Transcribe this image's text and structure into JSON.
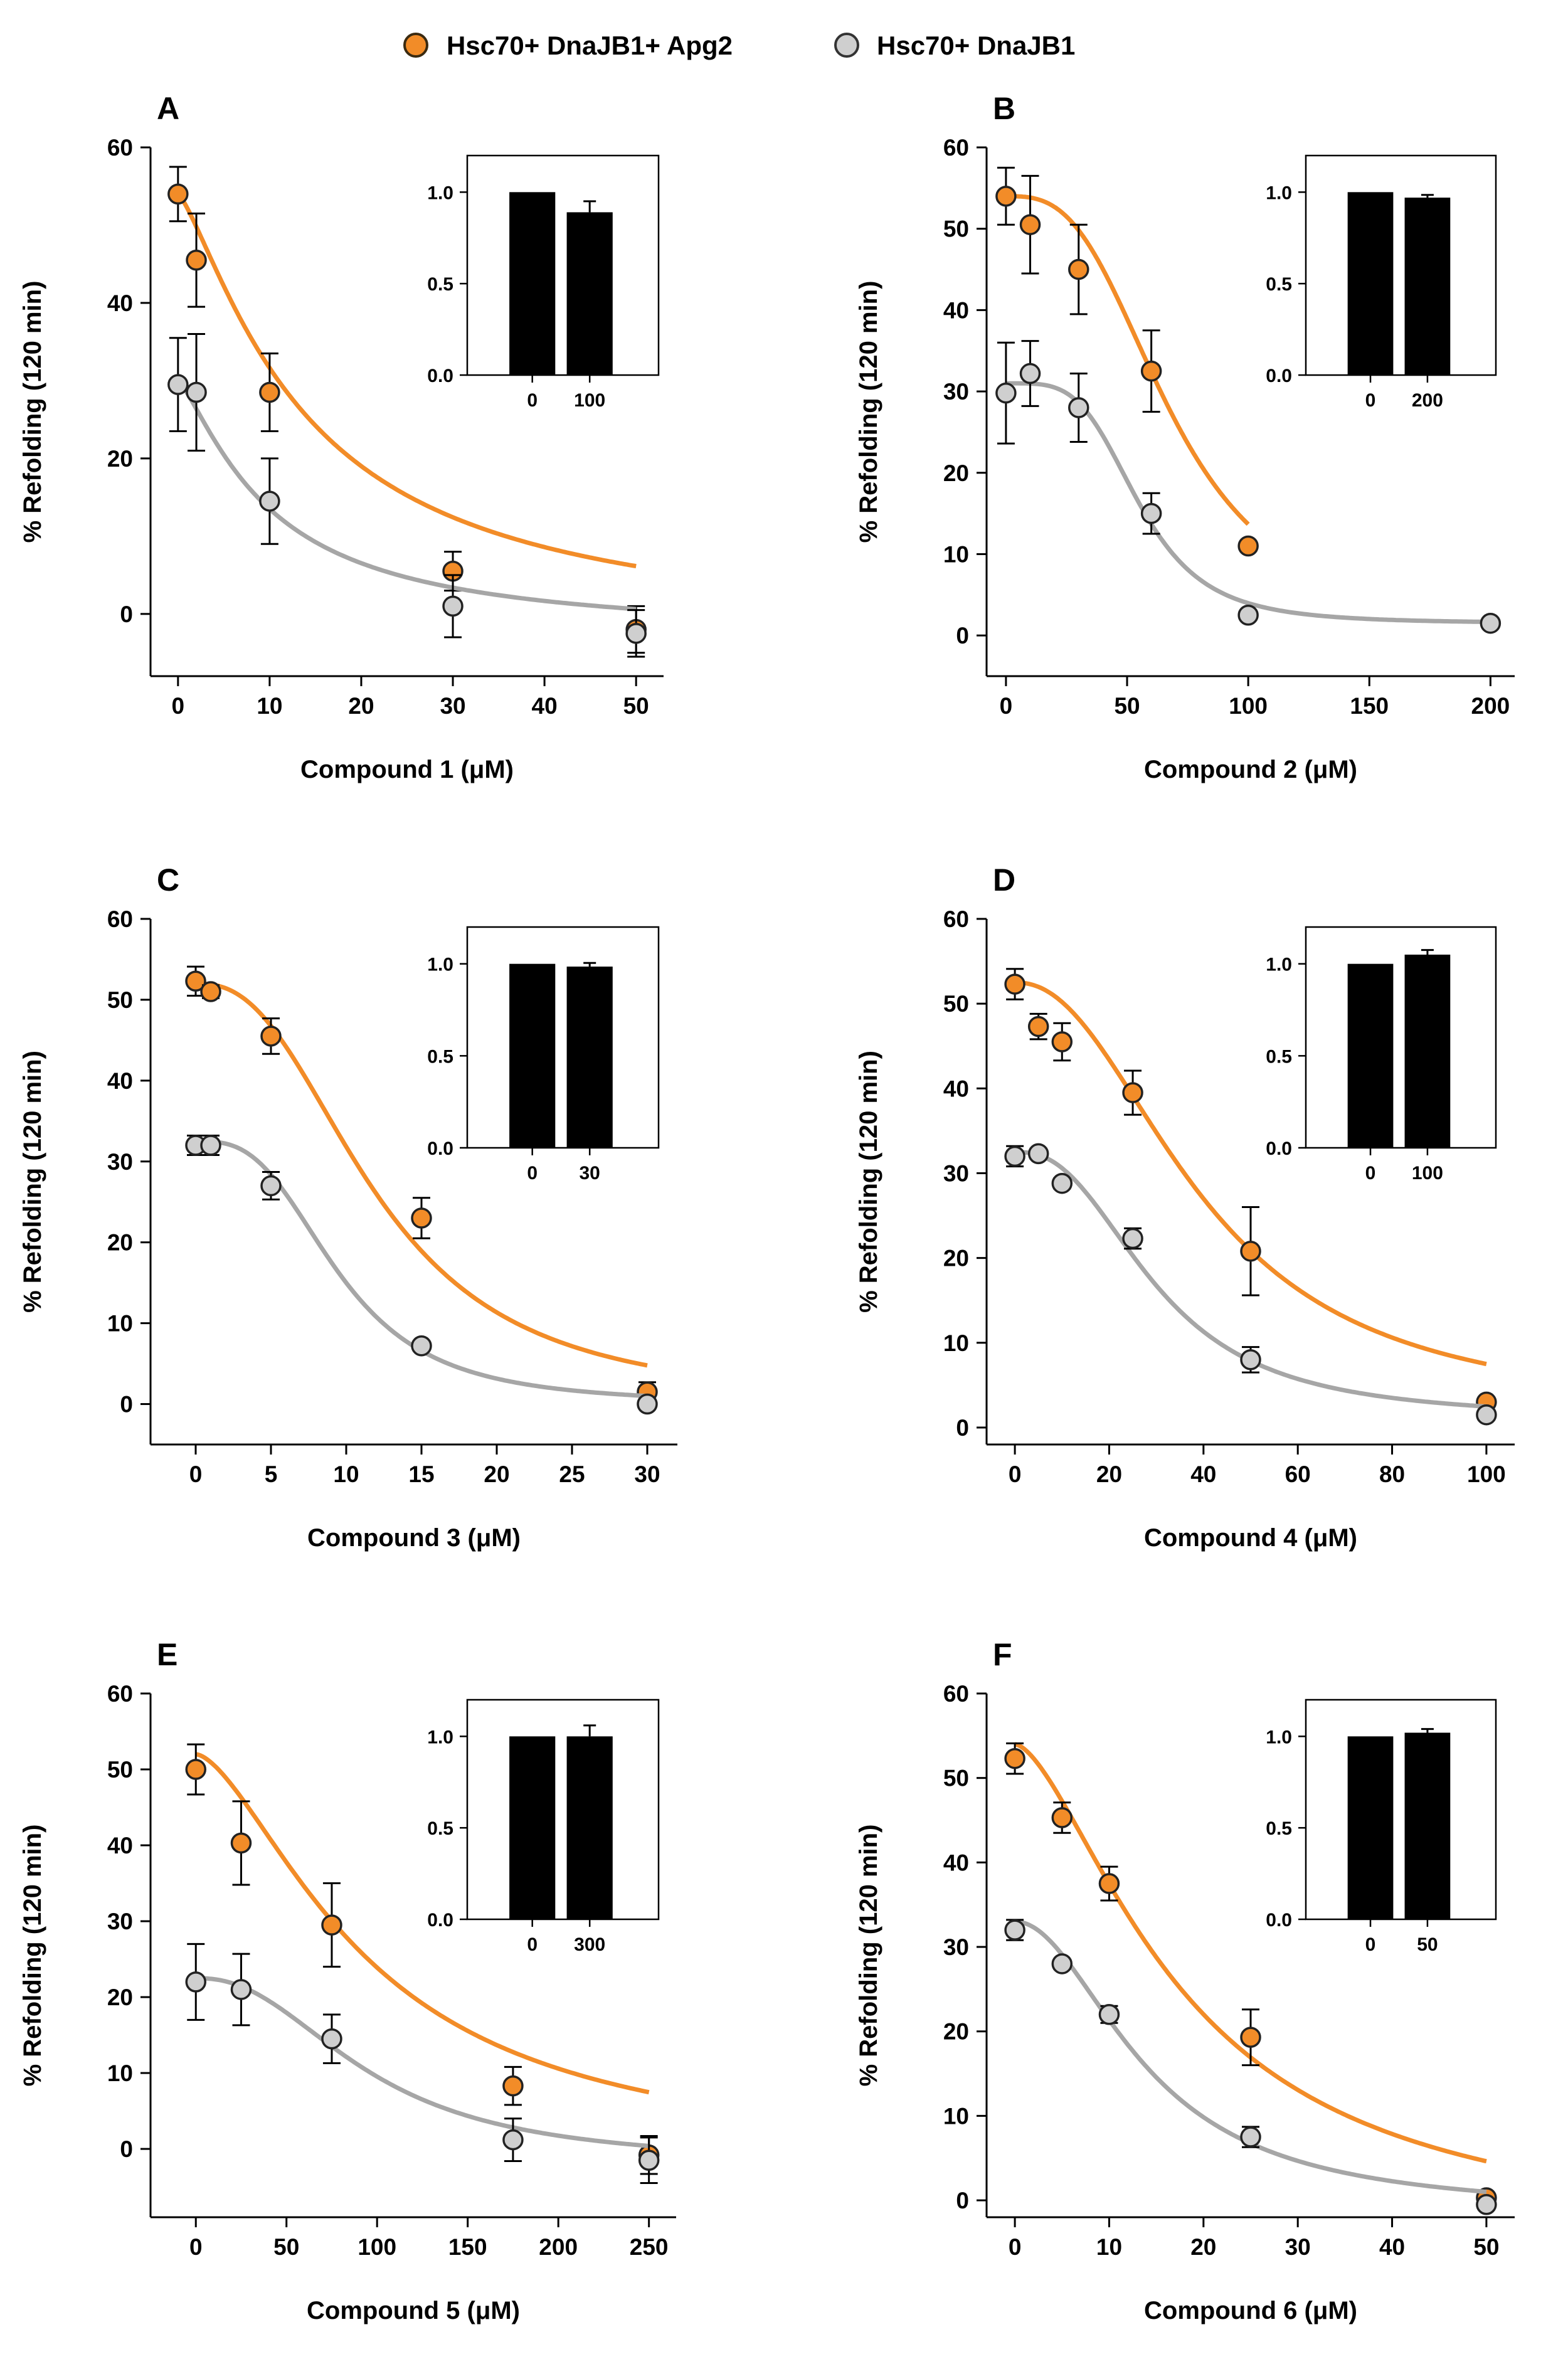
{
  "legend": {
    "items": [
      {
        "label": "Hsc70+ DnaJB1+ Apg2",
        "color": "#f28c28"
      },
      {
        "label": "Hsc70+ DnaJB1",
        "color": "#c8c8c8"
      }
    ]
  },
  "colors": {
    "orange_fill": "#f28c28",
    "orange_line": "#f28c28",
    "gray_fill": "#cfcfcf",
    "gray_line": "#a6a6a6",
    "axis": "#000000",
    "bar": "#000000"
  },
  "chart_data": [
    {
      "type": "scatter",
      "panel": "A",
      "xlabel": "Compound 1 (μM)",
      "ylabel": "% Refolding (120 min)",
      "xlim": [
        -3,
        53
      ],
      "ylim": [
        -8,
        60
      ],
      "xticks": [
        0,
        10,
        20,
        30,
        40,
        50
      ],
      "yticks": [
        0,
        20,
        40,
        60
      ],
      "series": [
        {
          "name": "Hsc70+ DnaJB1+ Apg2",
          "x": [
            0,
            2,
            10,
            30,
            50
          ],
          "y": [
            54,
            45.5,
            28.5,
            5.5,
            -2
          ],
          "err": [
            3.5,
            6,
            5,
            2.5,
            3
          ],
          "fit": {
            "top": 54,
            "bottom": -3,
            "ic50": 14,
            "hill": 1.3
          }
        },
        {
          "name": "Hsc70+ DnaJB1",
          "x": [
            0,
            2,
            10,
            30,
            50
          ],
          "y": [
            29.5,
            28.5,
            14.5,
            1,
            -2.5
          ],
          "err": [
            6,
            7.5,
            5.5,
            4,
            3
          ],
          "fit": {
            "top": 30,
            "bottom": -3,
            "ic50": 10,
            "hill": 1.3
          }
        }
      ],
      "inset": {
        "categories": [
          "0",
          "100"
        ],
        "values": [
          1.0,
          0.89
        ],
        "err": [
          0,
          0.06
        ],
        "yticks": [
          "0.0",
          "0.5",
          "1.0"
        ]
      }
    },
    {
      "type": "scatter",
      "panel": "B",
      "xlabel": "Compound 2 (μM)",
      "ylabel": "% Refolding (120 min)",
      "xlim": [
        -8,
        210
      ],
      "ylim": [
        -5,
        60
      ],
      "xticks": [
        0,
        50,
        100,
        150,
        200
      ],
      "yticks": [
        0,
        10,
        20,
        30,
        40,
        50,
        60
      ],
      "series": [
        {
          "name": "Hsc70+ DnaJB1+ Apg2",
          "x": [
            0,
            10,
            30,
            60,
            100
          ],
          "y": [
            54,
            50.5,
            45,
            32.5,
            11
          ],
          "err": [
            3.5,
            6,
            5.5,
            5,
            0.6
          ],
          "fit": {
            "top": 54,
            "bottom": 1,
            "ic50": 68,
            "hill": 3
          }
        },
        {
          "name": "Hsc70+ DnaJB1",
          "x": [
            0,
            10,
            30,
            60,
            100,
            200
          ],
          "y": [
            29.8,
            32.2,
            28,
            15,
            2.5,
            1.5
          ],
          "err": [
            6.2,
            4,
            4.2,
            2.5,
            0.6,
            0.5
          ],
          "fit": {
            "top": 31,
            "bottom": 1.5,
            "ic50": 55,
            "hill": 4
          }
        }
      ],
      "inset": {
        "categories": [
          "0",
          "200"
        ],
        "values": [
          1.0,
          0.97
        ],
        "err": [
          0,
          0.015
        ],
        "yticks": [
          "0.0",
          "0.5",
          "1.0"
        ]
      }
    },
    {
      "type": "scatter",
      "panel": "C",
      "xlabel": "Compound 3 (μM)",
      "ylabel": "% Refolding (120 min)",
      "xlim": [
        -3,
        32
      ],
      "ylim": [
        -5,
        60
      ],
      "xticks": [
        0,
        5,
        10,
        15,
        20,
        25,
        30
      ],
      "yticks": [
        0,
        10,
        20,
        30,
        40,
        50,
        60
      ],
      "series": [
        {
          "name": "Hsc70+ DnaJB1+ Apg2",
          "x": [
            0,
            1,
            5,
            15,
            30
          ],
          "y": [
            52.3,
            51,
            45.5,
            23,
            1.5
          ],
          "err": [
            1.8,
            0.8,
            2.2,
            2.5,
            1.2
          ],
          "fit": {
            "top": 52,
            "bottom": 0,
            "ic50": 12,
            "hill": 2.5
          }
        },
        {
          "name": "Hsc70+ DnaJB1",
          "x": [
            0,
            1,
            5,
            15,
            30
          ],
          "y": [
            32,
            32,
            27,
            7.2,
            0
          ],
          "err": [
            1.2,
            1.2,
            1.7,
            0.5,
            0.5
          ],
          "fit": {
            "top": 32.5,
            "bottom": 0,
            "ic50": 9.5,
            "hill": 3
          }
        }
      ],
      "inset": {
        "categories": [
          "0",
          "30"
        ],
        "values": [
          1.0,
          0.985
        ],
        "err": [
          0,
          0.02
        ],
        "yticks": [
          "0.0",
          "0.5",
          "1.0"
        ]
      }
    },
    {
      "type": "scatter",
      "panel": "D",
      "xlabel": "Compound 4 (μM)",
      "ylabel": "% Refolding (120 min)",
      "xlim": [
        -6,
        106
      ],
      "ylim": [
        -2,
        60
      ],
      "xticks": [
        0,
        20,
        40,
        60,
        80,
        100
      ],
      "yticks": [
        0,
        10,
        20,
        30,
        40,
        50,
        60
      ],
      "series": [
        {
          "name": "Hsc70+ DnaJB1+ Apg2",
          "x": [
            0,
            5,
            10,
            25,
            50,
            100
          ],
          "y": [
            52.3,
            47.3,
            45.5,
            39.5,
            20.8,
            3
          ],
          "err": [
            1.8,
            1.5,
            2.2,
            2.6,
            5.2,
            0.5
          ],
          "fit": {
            "top": 52.5,
            "bottom": 1.5,
            "ic50": 40,
            "hill": 2.2
          }
        },
        {
          "name": "Hsc70+ DnaJB1",
          "x": [
            0,
            5,
            10,
            25,
            50,
            100
          ],
          "y": [
            32,
            32.3,
            28.8,
            22.3,
            8,
            1.5
          ],
          "err": [
            1.2,
            0.6,
            0.6,
            1.2,
            1.5,
            0.5
          ],
          "fit": {
            "top": 32.5,
            "bottom": 1,
            "ic50": 30,
            "hill": 2.5
          }
        }
      ],
      "inset": {
        "categories": [
          "0",
          "100"
        ],
        "values": [
          1.0,
          1.05
        ],
        "err": [
          0,
          0.025
        ],
        "yticks": [
          "0.0",
          "0.5",
          "1.0"
        ]
      }
    },
    {
      "type": "scatter",
      "panel": "E",
      "xlabel": "Compound 5 (μM)",
      "ylabel": "% Refolding (120 min)",
      "xlim": [
        -25,
        265
      ],
      "ylim": [
        -9,
        60
      ],
      "xticks": [
        0,
        50,
        100,
        150,
        200,
        250
      ],
      "yticks": [
        0,
        10,
        20,
        30,
        40,
        50,
        60
      ],
      "series": [
        {
          "name": "Hsc70+ DnaJB1+ Apg2",
          "x": [
            0,
            25,
            75,
            175,
            250
          ],
          "y": [
            50,
            40.3,
            29.5,
            8.3,
            -0.8
          ],
          "err": [
            3.3,
            5.5,
            5.5,
            2.5,
            2.5
          ],
          "fit": {
            "top": 52,
            "bottom": -2,
            "ic50": 95,
            "hill": 1.6
          }
        },
        {
          "name": "Hsc70+ DnaJB1",
          "x": [
            0,
            25,
            75,
            175,
            250
          ],
          "y": [
            22,
            21,
            14.5,
            1.2,
            -1.5
          ],
          "err": [
            5,
            4.7,
            3.2,
            2.8,
            3
          ],
          "fit": {
            "top": 22.5,
            "bottom": -2,
            "ic50": 95,
            "hill": 2.3
          }
        }
      ],
      "inset": {
        "categories": [
          "0",
          "300"
        ],
        "values": [
          1.0,
          1.0
        ],
        "err": [
          0,
          0.06
        ],
        "yticks": [
          "0.0",
          "0.5",
          "1.0"
        ]
      }
    },
    {
      "type": "scatter",
      "panel": "F",
      "xlabel": "Compound 6 (μM)",
      "ylabel": "% Refolding (120 min)",
      "xlim": [
        -3,
        53
      ],
      "ylim": [
        -2,
        60
      ],
      "xticks": [
        0,
        10,
        20,
        30,
        40,
        50
      ],
      "yticks": [
        0,
        10,
        20,
        30,
        40,
        50,
        60
      ],
      "series": [
        {
          "name": "Hsc70+ DnaJB1+ Apg2",
          "x": [
            0,
            5,
            10,
            25,
            50
          ],
          "y": [
            52.3,
            45.3,
            37.5,
            19.3,
            0.3
          ],
          "err": [
            1.8,
            1.8,
            2,
            3.3,
            0.4
          ],
          "fit": {
            "top": 54,
            "bottom": -5,
            "ic50": 18,
            "hill": 1.6
          }
        },
        {
          "name": "Hsc70+ DnaJB1",
          "x": [
            0,
            5,
            10,
            25,
            50
          ],
          "y": [
            32,
            28,
            22,
            7.5,
            -0.5
          ],
          "err": [
            1.2,
            0.5,
            1,
            1.2,
            0.4
          ],
          "fit": {
            "top": 33,
            "bottom": -1.5,
            "ic50": 14,
            "hill": 2
          }
        }
      ],
      "inset": {
        "categories": [
          "0",
          "50"
        ],
        "values": [
          1.0,
          1.02
        ],
        "err": [
          0,
          0.02
        ],
        "yticks": [
          "0.0",
          "0.5",
          "1.0"
        ]
      }
    }
  ]
}
